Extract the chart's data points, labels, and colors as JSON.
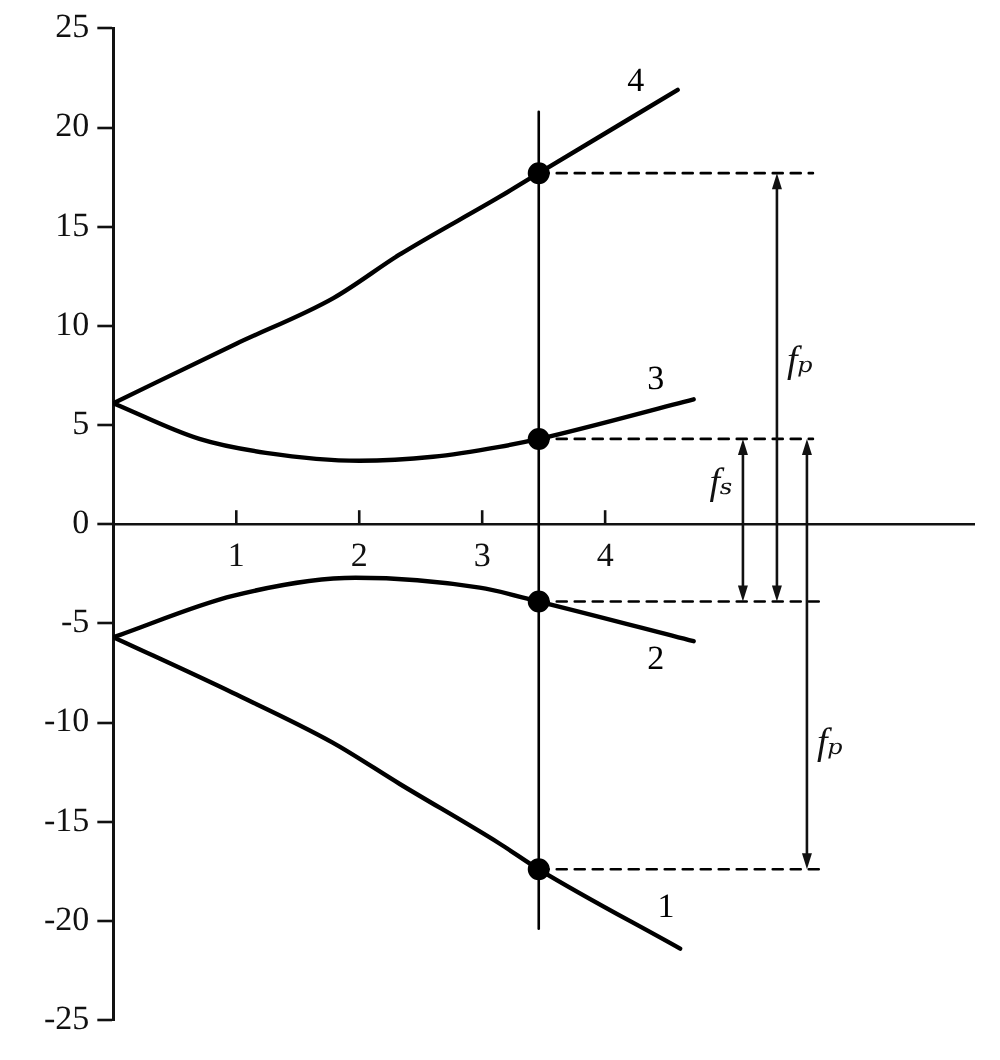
{
  "chart_data": {
    "type": "line",
    "xlim": [
      0,
      7
    ],
    "xticks": [
      1,
      2,
      3,
      4
    ],
    "ylim": [
      -25,
      25
    ],
    "yticks": [
      -25,
      -20,
      -15,
      -10,
      -5,
      0,
      5,
      10,
      15,
      20,
      25
    ],
    "marker": "none",
    "line_style": "solid",
    "series": [
      {
        "name": "1",
        "color": "#000000",
        "x": [
          0,
          0.97,
          1.78,
          2.33,
          3.14,
          3.46,
          4.61
        ],
        "values": [
          -5.7,
          -8.5,
          -11.0,
          -13.1,
          -16.1,
          -17.4,
          -21.4
        ]
      },
      {
        "name": "2",
        "color": "#000000",
        "x": [
          0,
          0.98,
          1.97,
          2.98,
          3.46,
          4.72
        ],
        "values": [
          -5.7,
          -3.6,
          -2.7,
          -3.2,
          -3.9,
          -5.9
        ]
      },
      {
        "name": "3",
        "color": "#000000",
        "x": [
          0,
          0.7,
          1.24,
          2.0,
          2.6,
          3.14,
          3.46,
          4.72
        ],
        "values": [
          6.1,
          4.3,
          3.6,
          3.2,
          3.4,
          3.9,
          4.3,
          6.3
        ]
      },
      {
        "name": "4",
        "color": "#000000",
        "x": [
          0,
          1,
          1.79,
          2.33,
          3.14,
          3.46,
          4.59
        ],
        "values": [
          6.1,
          9.1,
          11.4,
          13.6,
          16.5,
          17.7,
          21.9
        ]
      },
      {
        "type": "scatter",
        "marker": "circle",
        "color": "#000000",
        "x": [
          3.46,
          3.46,
          3.46,
          3.46
        ],
        "values": [
          17.7,
          4.3,
          -3.9,
          -17.4
        ]
      },
      {
        "color": "#000000",
        "x": [
          3.46,
          3.46
        ],
        "values": [
          20.8,
          -20.4
        ]
      },
      {
        "color": "#000000",
        "line_style": "dashed",
        "x": [
          3.46,
          5.69
        ],
        "values": [
          17.7,
          17.7
        ]
      },
      {
        "color": "#000000",
        "line_style": "dashed",
        "x": [
          3.46,
          5.69
        ],
        "values": [
          4.3,
          4.3
        ]
      },
      {
        "color": "#000000",
        "line_style": "dashed",
        "x": [
          3.46,
          5.79
        ],
        "values": [
          -3.9,
          -3.9
        ]
      },
      {
        "color": "#000000",
        "line_style": "dashed",
        "x": [
          3.46,
          5.74
        ],
        "values": [
          -17.4,
          -17.4
        ]
      }
    ],
    "annotations": [
      "fₚ",
      "fₛ",
      "fₚ"
    ]
  }
}
